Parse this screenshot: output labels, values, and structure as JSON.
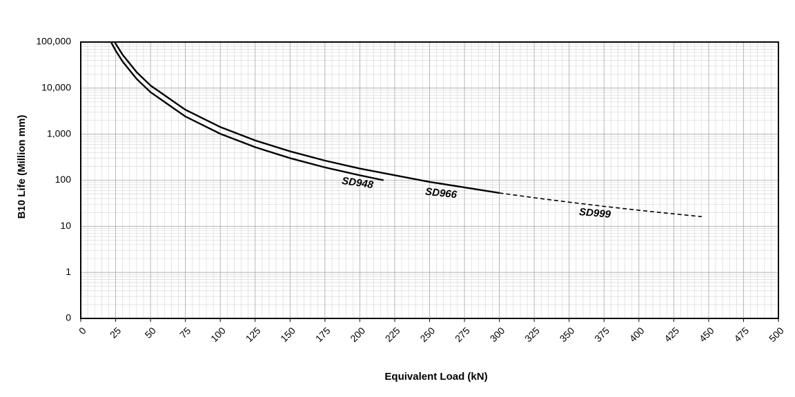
{
  "chart_data": {
    "type": "line",
    "x_label": "Equivalent Load (kN)",
    "y_label": "B10 Life (Million mm)",
    "xlim": [
      0,
      500
    ],
    "xticks": [
      0,
      25,
      50,
      75,
      100,
      125,
      150,
      175,
      200,
      225,
      250,
      275,
      300,
      325,
      350,
      375,
      400,
      425,
      450,
      475,
      500
    ],
    "ylim": [
      0.1,
      100000
    ],
    "y_scale": "log",
    "yticks": [
      {
        "value": 0.1,
        "label": "0"
      },
      1,
      10,
      100,
      {
        "value": 1000,
        "label": "1,000"
      },
      {
        "value": 10000,
        "label": "10,000"
      },
      {
        "value": 100000,
        "label": "100,000"
      }
    ],
    "grid": true,
    "series": [
      {
        "name": "SD948",
        "color": "#000000",
        "dash": false,
        "x": [
          21.7,
          25,
          30,
          40,
          50,
          75,
          100,
          125,
          150,
          175,
          200,
          217
        ],
        "values": [
          100000,
          65300,
          37800,
          15900,
          8160,
          2420,
          1020,
          522,
          302,
          190,
          128,
          100
        ]
      },
      {
        "name": "SD966",
        "color": "#000000",
        "dash": false,
        "x": [
          24.3,
          30,
          40,
          50,
          75,
          100,
          125,
          150,
          175,
          200,
          250,
          300
        ],
        "values": [
          100000,
          53000,
          22300,
          11400,
          3390,
          1430,
          732,
          424,
          267,
          179,
          92,
          53
        ]
      },
      {
        "name": "SD999",
        "color": "#000000",
        "dash": true,
        "x": [
          300,
          325,
          350,
          375,
          400,
          425,
          445
        ],
        "values": [
          53,
          41.7,
          33.4,
          27.1,
          22.3,
          18.6,
          16.2
        ]
      }
    ]
  }
}
